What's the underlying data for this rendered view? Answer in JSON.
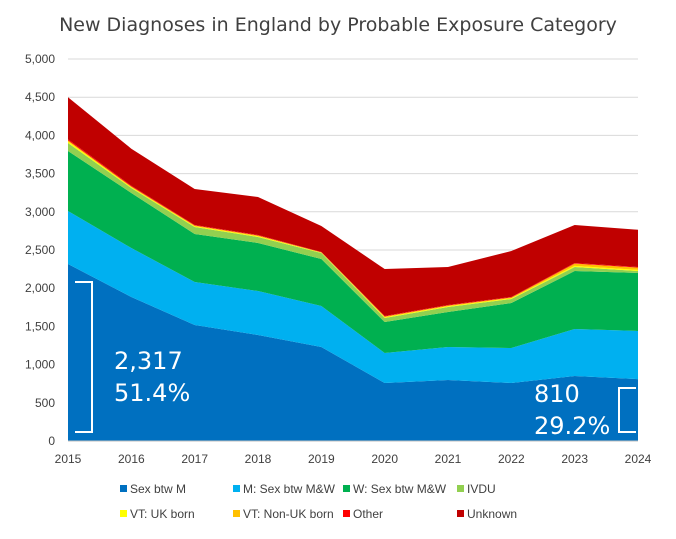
{
  "chart_data": {
    "type": "area",
    "stacked": true,
    "title": "New Diagnoses in England by Probable Exposure Category",
    "xlabel": "",
    "ylabel": "",
    "categories": [
      "2015",
      "2016",
      "2017",
      "2018",
      "2019",
      "2020",
      "2021",
      "2022",
      "2023",
      "2024"
    ],
    "ylim": [
      0,
      5000
    ],
    "yticks": [
      0,
      500,
      1000,
      1500,
      2000,
      2500,
      3000,
      3500,
      4000,
      4500,
      5000
    ],
    "ytick_labels": [
      "0",
      "500",
      "1,000",
      "1,500",
      "2,000",
      "2,500",
      "3,000",
      "3,500",
      "4,000",
      "4,500",
      "5,000"
    ],
    "grid": true,
    "legend_position": "bottom",
    "series": [
      {
        "name": "Sex btw M",
        "color": "#0070C0",
        "values": [
          2317,
          1885,
          1518,
          1387,
          1230,
          759,
          798,
          759,
          851,
          810
        ]
      },
      {
        "name": "M: Sex btw M&W",
        "color": "#00B0F0",
        "values": [
          693,
          641,
          563,
          576,
          537,
          393,
          432,
          458,
          615,
          630
        ]
      },
      {
        "name": "W: Sex btw M&W",
        "color": "#00B050",
        "values": [
          786,
          720,
          628,
          629,
          615,
          406,
          458,
          589,
          759,
          759
        ]
      },
      {
        "name": "IVDU",
        "color": "#92D050",
        "values": [
          104,
          65,
          92,
          78,
          79,
          52,
          66,
          53,
          52,
          26
        ]
      },
      {
        "name": "VT: UK born",
        "color": "#FFFF00",
        "values": [
          20,
          10,
          10,
          10,
          5,
          10,
          10,
          10,
          15,
          15
        ]
      },
      {
        "name": "VT: Non-UK born",
        "color": "#FFC000",
        "values": [
          15,
          10,
          10,
          10,
          5,
          10,
          10,
          10,
          30,
          30
        ]
      },
      {
        "name": "Other",
        "color": "#FF0000",
        "values": [
          15,
          10,
          6,
          6,
          3,
          6,
          6,
          6,
          8,
          7
        ]
      },
      {
        "name": "Unknown",
        "color": "#C00000",
        "values": [
          550,
          485,
          471,
          498,
          340,
          615,
          497,
          602,
          497,
          488
        ]
      }
    ],
    "annotations": [
      {
        "category": "2015",
        "lines": [
          "2,317",
          "51.4%"
        ]
      },
      {
        "category": "2024",
        "lines": [
          "810",
          "29.2%"
        ]
      }
    ]
  }
}
